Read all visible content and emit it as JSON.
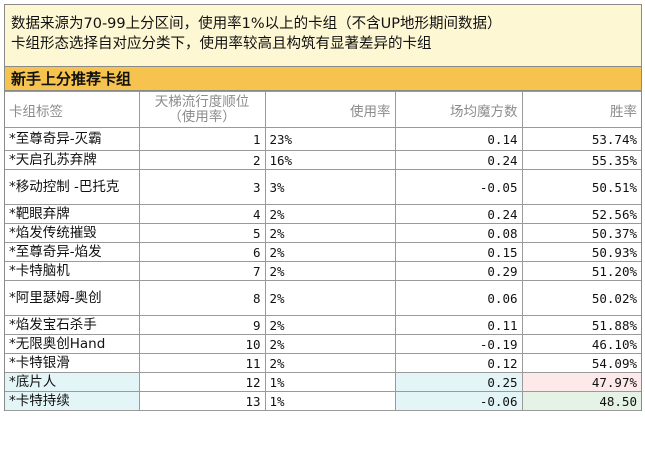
{
  "notes": {
    "line1": "数据来源为70-99上分区间，使用率1%以上的卡组（不含UP地形期间数据）",
    "line2": "卡组形态选择自对应分类下，使用率较高且构筑有显著差异的卡组"
  },
  "section_title": "新手上分推荐卡组",
  "columns": {
    "name": "卡组标签",
    "rank_line1": "天梯流行度顺位",
    "rank_line2": "（使用率）",
    "usage": "使用率",
    "mana": "场均魔方数",
    "winrate": "胜率"
  },
  "rows": [
    {
      "name": "*至尊奇异-灭霸",
      "rank": "1",
      "usage": "23%",
      "mana": "0.14",
      "winrate": "53.74%"
    },
    {
      "name": "*天启孔苏弃牌",
      "rank": "2",
      "usage": "16%",
      "mana": "0.24",
      "winrate": "55.35%"
    },
    {
      "name": "*移动控制 -巴托克",
      "rank": "3",
      "usage": "3%",
      "mana": "-0.05",
      "winrate": "50.51%"
    },
    {
      "name": "*靶眼弃牌",
      "rank": "4",
      "usage": "2%",
      "mana": "0.24",
      "winrate": "52.56%"
    },
    {
      "name": "*焰发传统摧毁",
      "rank": "5",
      "usage": "2%",
      "mana": "0.08",
      "winrate": "50.37%"
    },
    {
      "name": "*至尊奇异-焰发",
      "rank": "6",
      "usage": "2%",
      "mana": "0.15",
      "winrate": "50.93%"
    },
    {
      "name": "*卡特脑机",
      "rank": "7",
      "usage": "2%",
      "mana": "0.29",
      "winrate": "51.20%"
    },
    {
      "name": "*阿里瑟姆-奥创",
      "rank": "8",
      "usage": "2%",
      "mana": "0.06",
      "winrate": "50.02%"
    },
    {
      "name": "*焰发宝石杀手",
      "rank": "9",
      "usage": "2%",
      "mana": "0.11",
      "winrate": "51.88%"
    },
    {
      "name": "*无限奥创Hand",
      "rank": "10",
      "usage": "2%",
      "mana": "-0.19",
      "winrate": "46.10%"
    },
    {
      "name": "*卡特银滑",
      "rank": "11",
      "usage": "2%",
      "mana": "0.12",
      "winrate": "54.09%"
    },
    {
      "name": "*底片人",
      "rank": "12",
      "usage": "1%",
      "mana": "0.25",
      "winrate": "47.97%"
    },
    {
      "name": "*卡特持续",
      "rank": "13",
      "usage": "1%",
      "mana": "-0.06",
      "winrate": "48.50"
    }
  ],
  "colors": {
    "note_bg": "#fdf7d4",
    "section_bg": "#f6c44e",
    "highlight_blue": "#e4f5f7",
    "highlight_green": "#e4f3e6",
    "highlight_pink": "#fde9e9"
  }
}
